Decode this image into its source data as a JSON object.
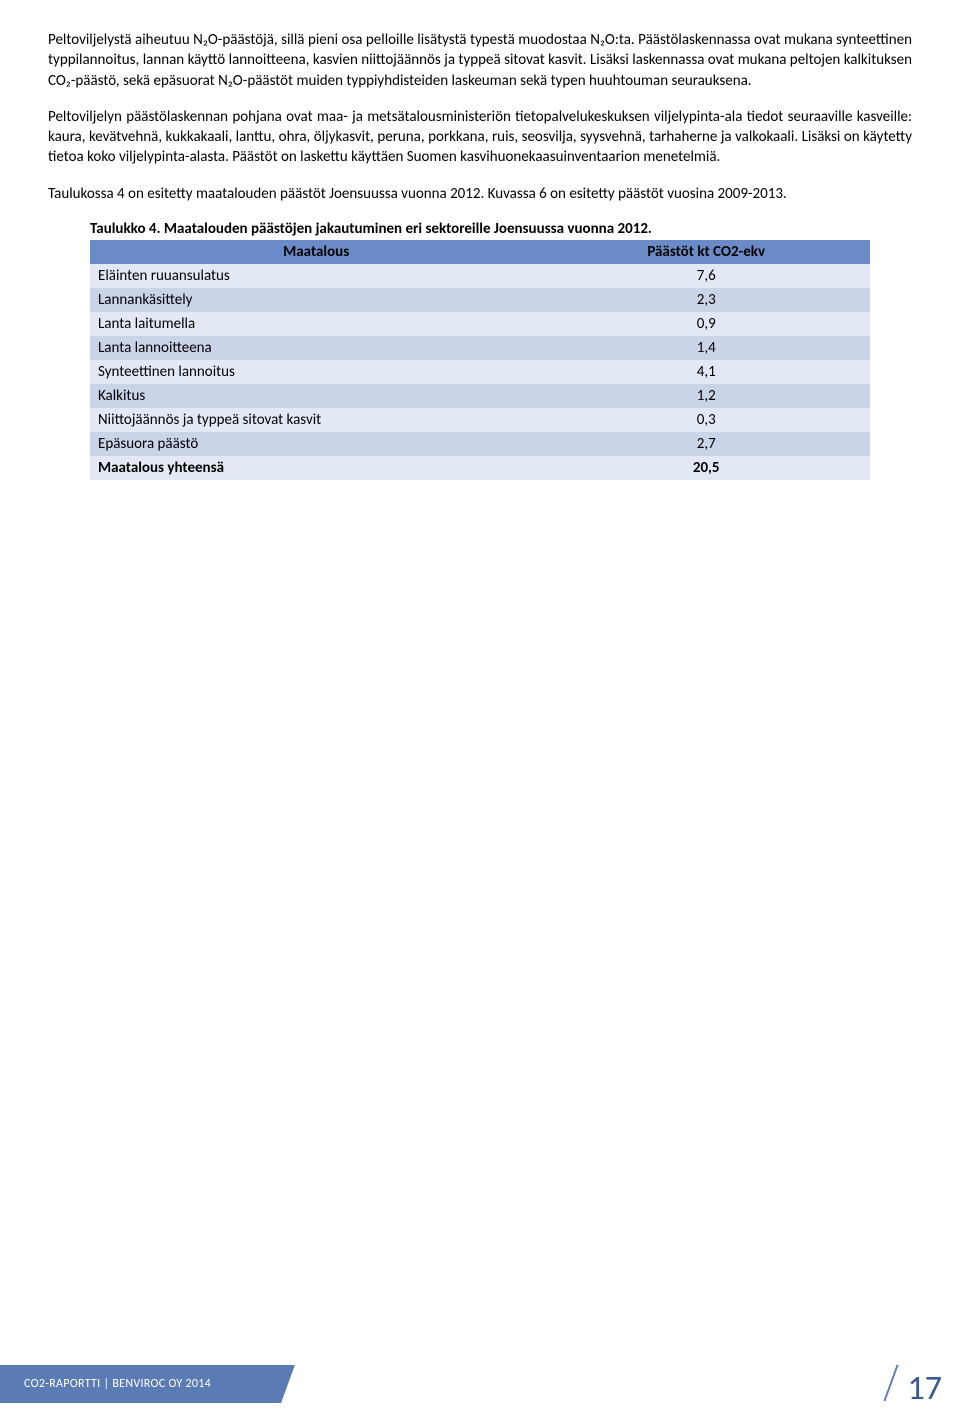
{
  "paragraphs": {
    "p1": "Peltoviljelystä aiheutuu N₂O-päästöjä, sillä pieni osa pelloille lisätystä typestä muodostaa N₂O:ta. Päästölaskennassa ovat mukana synteettinen typpilannoitus, lannan käyttö lannoitteena, kasvien niittojäännös ja typpeä sitovat kasvit. Lisäksi laskennassa ovat mukana peltojen kalkituksen CO₂-päästö, sekä epäsuorat N₂O-päästöt muiden typpiyhdisteiden laskeuman sekä typen huuhtouman seurauksena.",
    "p2": "Peltoviljelyn päästölaskennan pohjana ovat maa- ja metsätalousministeriön tietopalvelukeskuksen viljelypinta-ala tiedot seuraaville kasveille: kaura, kevätvehnä, kukkakaali, lanttu, ohra, öljykasvit, peruna, porkkana, ruis, seosvilja, syysvehnä, tarhaherne ja valkokaali. Lisäksi on käytetty tietoa koko viljelypinta-alasta. Päästöt on laskettu käyttäen Suomen kasvihuonekaasuinventaarion menetelmiä.",
    "p3": "Taulukossa 4 on esitetty maatalouden päästöt Joensuussa vuonna 2012. Kuvassa 6 on esitetty päästöt vuosina 2009-2013."
  },
  "table": {
    "caption": "Taulukko 4. Maatalouden päästöjen jakautuminen eri sektoreille Joensuussa vuonna 2012.",
    "header": {
      "col1": "Maatalous",
      "col2": "Päästöt kt CO2-ekv"
    },
    "rows": [
      {
        "label": "Eläinten ruuansulatus",
        "value": "7,6"
      },
      {
        "label": "Lannankäsittely",
        "value": "2,3"
      },
      {
        "label": "Lanta laitumella",
        "value": "0,9"
      },
      {
        "label": "Lanta lannoitteena",
        "value": "1,4"
      },
      {
        "label": "Synteettinen lannoitus",
        "value": "4,1"
      },
      {
        "label": "Kalkitus",
        "value": "1,2"
      },
      {
        "label": "Niittojäännös ja typpeä sitovat kasvit",
        "value": "0,3"
      },
      {
        "label": "Epäsuora päästö",
        "value": "2,7"
      }
    ],
    "total": {
      "label": "Maatalous yhteensä",
      "value": "20,5"
    }
  },
  "footer": {
    "text": "CO2-RAPORTTI | BENVIROC OY 2014",
    "page": "17"
  },
  "colors": {
    "header_row": "#6a8bc8",
    "row_light": "#e3e9f4",
    "row_dark": "#c9d4e9",
    "footer_bar": "#5b7bb4",
    "page_num": "#3a5a94"
  }
}
